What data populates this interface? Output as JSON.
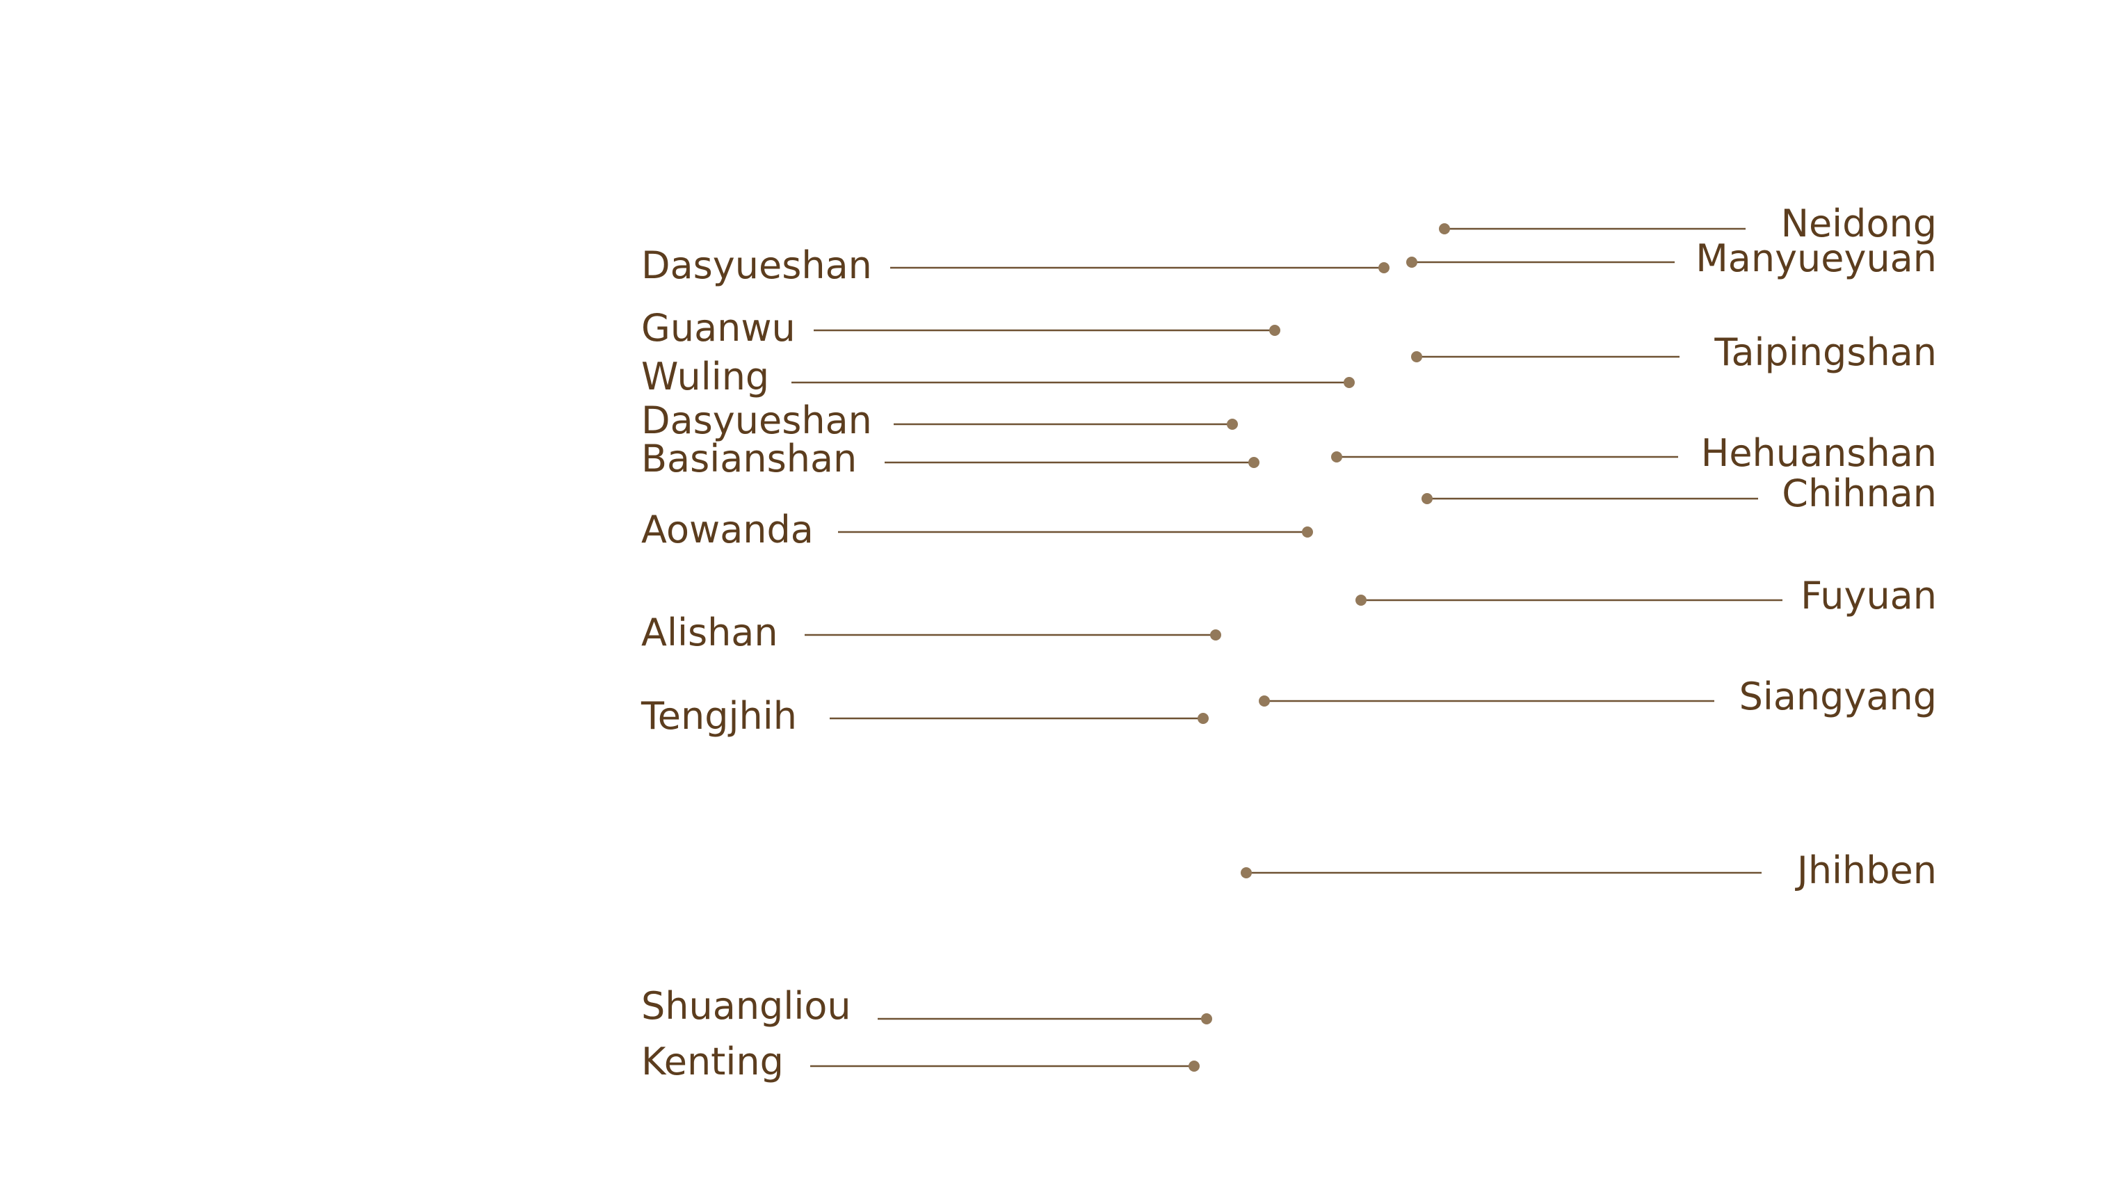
{
  "colors": {
    "text": "#5c3d1e",
    "line": "#6f5233",
    "dot": "#93795a",
    "background": "#ffffff"
  },
  "labels": {
    "left": [
      "Dasyueshan",
      "Guanwu",
      "Wuling",
      "Dasyueshan",
      "Basianshan",
      "Aowanda",
      "Alishan",
      "Tengjhih",
      "Shuangliou",
      "Kenting"
    ],
    "right": [
      "Neidong",
      "Manyueyuan",
      "Taipingshan",
      "Hehuanshan",
      "Chihnan",
      "Fuyuan",
      "Siangyang",
      "Jhihben"
    ]
  }
}
